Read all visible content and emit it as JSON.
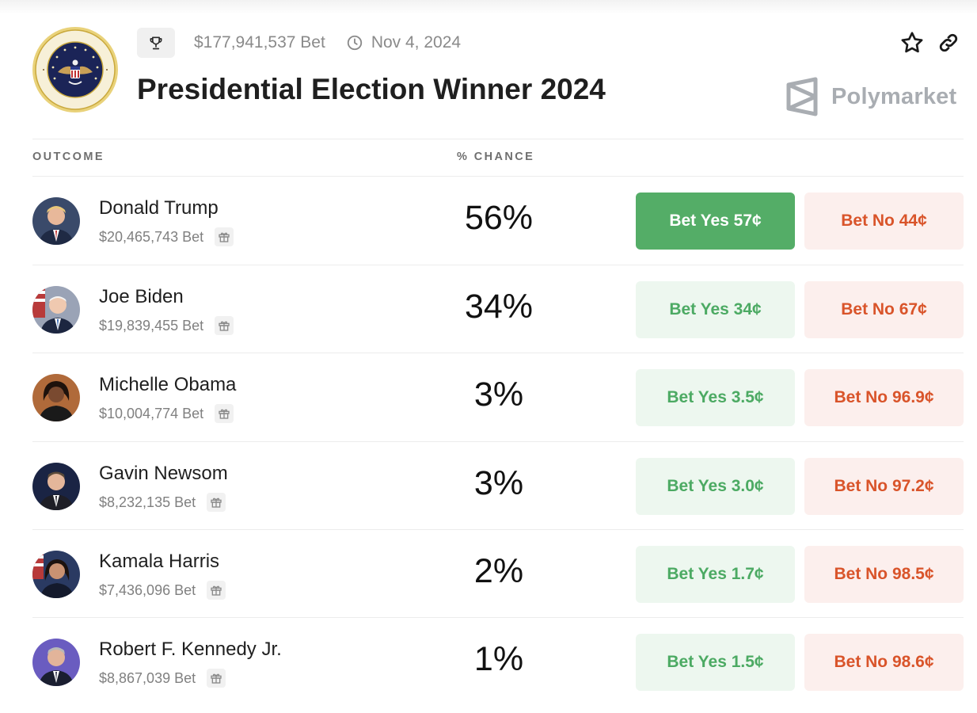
{
  "header": {
    "volume": "$177,941,537 Bet",
    "date": "Nov 4, 2024",
    "title": "Presidential Election Winner 2024",
    "brand": "Polymarket"
  },
  "columns": {
    "outcome": "OUTCOME",
    "chance": "% CHANCE"
  },
  "outcomes": [
    {
      "name": "Donald Trump",
      "bet": "$20,465,743 Bet",
      "chance": "56%",
      "yes": "Bet Yes 57¢",
      "no": "Bet No 44¢",
      "yes_active": true,
      "avatar_color": "#3a4a6a"
    },
    {
      "name": "Joe Biden",
      "bet": "$19,839,455 Bet",
      "chance": "34%",
      "yes": "Bet Yes 34¢",
      "no": "Bet No 67¢",
      "yes_active": false,
      "avatar_color": "#8a94a8"
    },
    {
      "name": "Michelle Obama",
      "bet": "$10,004,774 Bet",
      "chance": "3%",
      "yes": "Bet Yes 3.5¢",
      "no": "Bet No 96.9¢",
      "yes_active": false,
      "avatar_color": "#a8643a"
    },
    {
      "name": "Gavin Newsom",
      "bet": "$8,232,135 Bet",
      "chance": "3%",
      "yes": "Bet Yes 3.0¢",
      "no": "Bet No 97.2¢",
      "yes_active": false,
      "avatar_color": "#1e2a4a"
    },
    {
      "name": "Kamala Harris",
      "bet": "$7,436,096 Bet",
      "chance": "2%",
      "yes": "Bet Yes 1.7¢",
      "no": "Bet No 98.5¢",
      "yes_active": false,
      "avatar_color": "#2a3a5a"
    },
    {
      "name": "Robert F. Kennedy Jr.",
      "bet": "$8,867,039 Bet",
      "chance": "1%",
      "yes": "Bet Yes 1.5¢",
      "no": "Bet No 98.6¢",
      "yes_active": false,
      "avatar_color": "#5a52a8"
    }
  ],
  "icons": {
    "trophy": "trophy-icon",
    "clock": "clock-icon",
    "star": "star-icon",
    "link": "link-icon",
    "gift": "gift-icon",
    "seal": "presidential-seal-logo",
    "brand_mark": "polymarket-logo-icon"
  },
  "colors": {
    "yes_active_bg": "#54ad67",
    "yes_bg": "#edf7ef",
    "yes_text": "#4caa63",
    "no_bg": "#fcefed",
    "no_text": "#d9542a"
  }
}
